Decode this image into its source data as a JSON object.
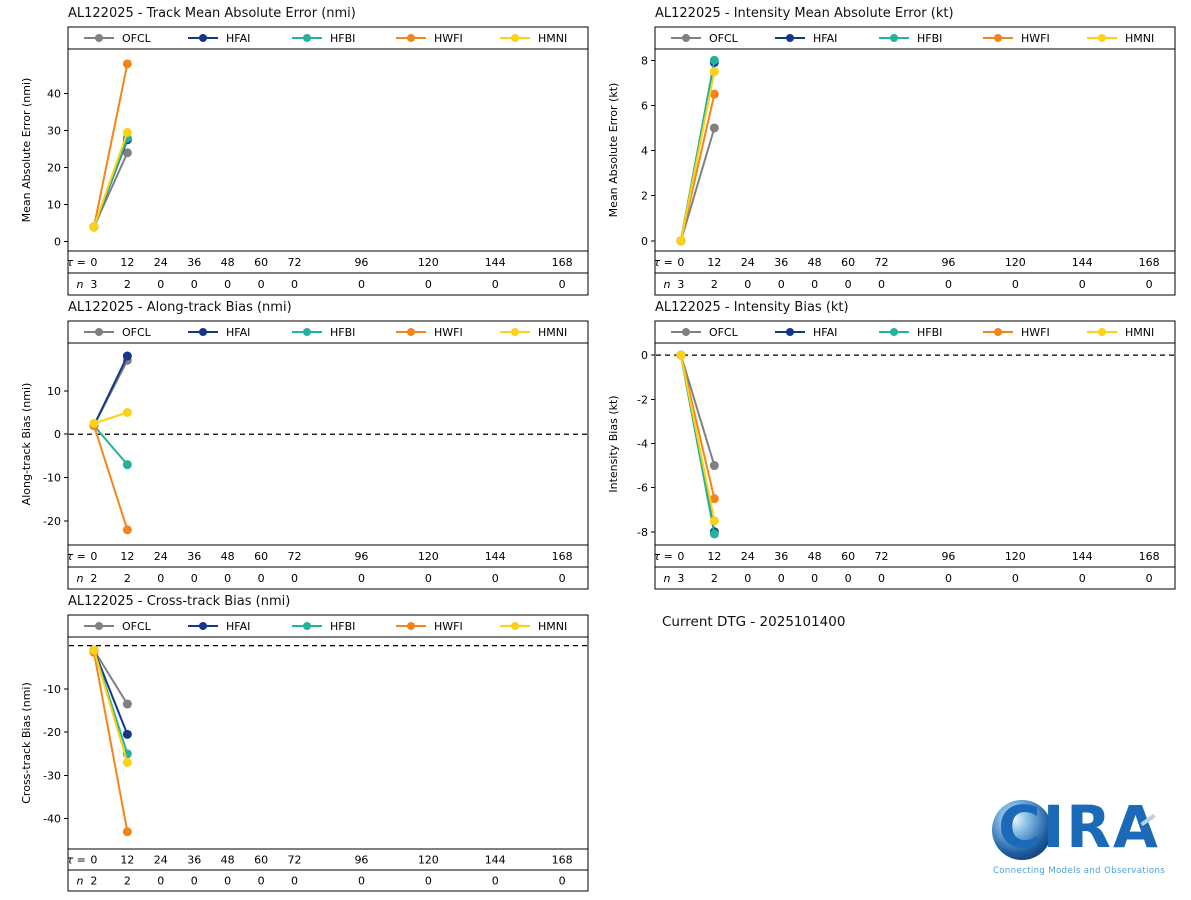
{
  "page": {
    "current_dtg": "Current DTG - 2025101400"
  },
  "logo": {
    "name": "CIRA",
    "tagline": "Connecting Models and Observations"
  },
  "table": {
    "tau_label": "τ =",
    "n_label": "n"
  },
  "chart_data": [
    {
      "id": "track-mae",
      "type": "line",
      "title": "AL122025 - Track Mean Absolute Error (nmi)",
      "ylabel": "Mean Absolute Error (nmi)",
      "x": [
        0,
        12
      ],
      "tau_ticks": [
        0,
        12,
        24,
        36,
        48,
        60,
        72,
        96,
        120,
        144,
        168
      ],
      "xlim": [
        -9.3,
        177.3
      ],
      "n_row": [
        3,
        2,
        0,
        0,
        0,
        0,
        0,
        0,
        0,
        0,
        0
      ],
      "ylim": [
        -2.5,
        52
      ],
      "yticks": [
        0,
        10,
        20,
        30,
        40
      ],
      "zero_line": false,
      "legend_position": "top",
      "series": [
        {
          "name": "OFCL",
          "color": "#808080",
          "values": [
            4,
            24
          ]
        },
        {
          "name": "HFAI",
          "color": "#16368c",
          "values": [
            4,
            27.5
          ]
        },
        {
          "name": "HFBI",
          "color": "#23b39a",
          "values": [
            4,
            28
          ]
        },
        {
          "name": "HWFI",
          "color": "#f5841a",
          "values": [
            4,
            48
          ]
        },
        {
          "name": "HMNI",
          "color": "#fcd116",
          "values": [
            4,
            29.5
          ]
        }
      ]
    },
    {
      "id": "intensity-mae",
      "type": "line",
      "title": "AL122025 - Intensity Mean Absolute Error (kt)",
      "ylabel": "Mean Absolute Error (kt)",
      "x": [
        0,
        12
      ],
      "tau_ticks": [
        0,
        12,
        24,
        36,
        48,
        60,
        72,
        96,
        120,
        144,
        168
      ],
      "xlim": [
        -9.3,
        177.3
      ],
      "n_row": [
        3,
        2,
        0,
        0,
        0,
        0,
        0,
        0,
        0,
        0,
        0
      ],
      "ylim": [
        -0.45,
        8.5
      ],
      "yticks": [
        0,
        2,
        4,
        6,
        8
      ],
      "zero_line": false,
      "legend_position": "top",
      "series": [
        {
          "name": "OFCL",
          "color": "#808080",
          "values": [
            0,
            5
          ]
        },
        {
          "name": "HFAI",
          "color": "#16368c",
          "values": [
            0,
            7.9
          ]
        },
        {
          "name": "HFBI",
          "color": "#23b39a",
          "values": [
            0,
            8
          ]
        },
        {
          "name": "HWFI",
          "color": "#f5841a",
          "values": [
            0,
            6.5
          ]
        },
        {
          "name": "HMNI",
          "color": "#fcd116",
          "values": [
            0,
            7.5
          ]
        }
      ]
    },
    {
      "id": "along-track-bias",
      "type": "line",
      "title": "AL122025 - Along-track Bias (nmi)",
      "ylabel": "Along-track Bias (nmi)",
      "x": [
        0,
        12
      ],
      "tau_ticks": [
        0,
        12,
        24,
        36,
        48,
        60,
        72,
        96,
        120,
        144,
        168
      ],
      "xlim": [
        -9.3,
        177.3
      ],
      "n_row": [
        2,
        2,
        0,
        0,
        0,
        0,
        0,
        0,
        0,
        0,
        0
      ],
      "ylim": [
        -25.5,
        21
      ],
      "yticks": [
        -20,
        -10,
        0,
        10
      ],
      "zero_line": true,
      "legend_position": "top",
      "series": [
        {
          "name": "OFCL",
          "color": "#808080",
          "values": [
            2,
            17
          ]
        },
        {
          "name": "HFAI",
          "color": "#16368c",
          "values": [
            2,
            18
          ]
        },
        {
          "name": "HFBI",
          "color": "#23b39a",
          "values": [
            2,
            -7
          ]
        },
        {
          "name": "HWFI",
          "color": "#f5841a",
          "values": [
            2,
            -22
          ]
        },
        {
          "name": "HMNI",
          "color": "#fcd116",
          "values": [
            2.5,
            5
          ]
        }
      ]
    },
    {
      "id": "intensity-bias",
      "type": "line",
      "title": "AL122025 - Intensity Bias (kt)",
      "ylabel": "Intensity Bias (kt)",
      "x": [
        0,
        12
      ],
      "tau_ticks": [
        0,
        12,
        24,
        36,
        48,
        60,
        72,
        96,
        120,
        144,
        168
      ],
      "xlim": [
        -9.3,
        177.3
      ],
      "n_row": [
        3,
        2,
        0,
        0,
        0,
        0,
        0,
        0,
        0,
        0,
        0
      ],
      "ylim": [
        -8.6,
        0.55
      ],
      "yticks": [
        -8,
        -6,
        -4,
        -2,
        0
      ],
      "zero_line": true,
      "legend_position": "top",
      "series": [
        {
          "name": "OFCL",
          "color": "#808080",
          "values": [
            0,
            -5
          ]
        },
        {
          "name": "HFAI",
          "color": "#16368c",
          "values": [
            0,
            -8
          ]
        },
        {
          "name": "HFBI",
          "color": "#23b39a",
          "values": [
            0,
            -8.1
          ]
        },
        {
          "name": "HWFI",
          "color": "#f5841a",
          "values": [
            0,
            -6.5
          ]
        },
        {
          "name": "HMNI",
          "color": "#fcd116",
          "values": [
            0,
            -7.5
          ]
        }
      ]
    },
    {
      "id": "cross-track-bias",
      "type": "line",
      "title": "AL122025 - Cross-track Bias (nmi)",
      "ylabel": "Cross-track Bias (nmi)",
      "x": [
        0,
        12
      ],
      "tau_ticks": [
        0,
        12,
        24,
        36,
        48,
        60,
        72,
        96,
        120,
        144,
        168
      ],
      "xlim": [
        -9.3,
        177.3
      ],
      "n_row": [
        2,
        2,
        0,
        0,
        0,
        0,
        0,
        0,
        0,
        0,
        0
      ],
      "ylim": [
        -47,
        2
      ],
      "yticks": [
        -40,
        -30,
        -20,
        -10
      ],
      "zero_line": true,
      "legend_position": "top",
      "series": [
        {
          "name": "OFCL",
          "color": "#808080",
          "values": [
            -1,
            -13.5
          ]
        },
        {
          "name": "HFAI",
          "color": "#16368c",
          "values": [
            -1,
            -20.5
          ]
        },
        {
          "name": "HFBI",
          "color": "#23b39a",
          "values": [
            -1,
            -25
          ]
        },
        {
          "name": "HWFI",
          "color": "#f5841a",
          "values": [
            -1.5,
            -43
          ]
        },
        {
          "name": "HMNI",
          "color": "#fcd116",
          "values": [
            -1,
            -27
          ]
        }
      ]
    }
  ]
}
